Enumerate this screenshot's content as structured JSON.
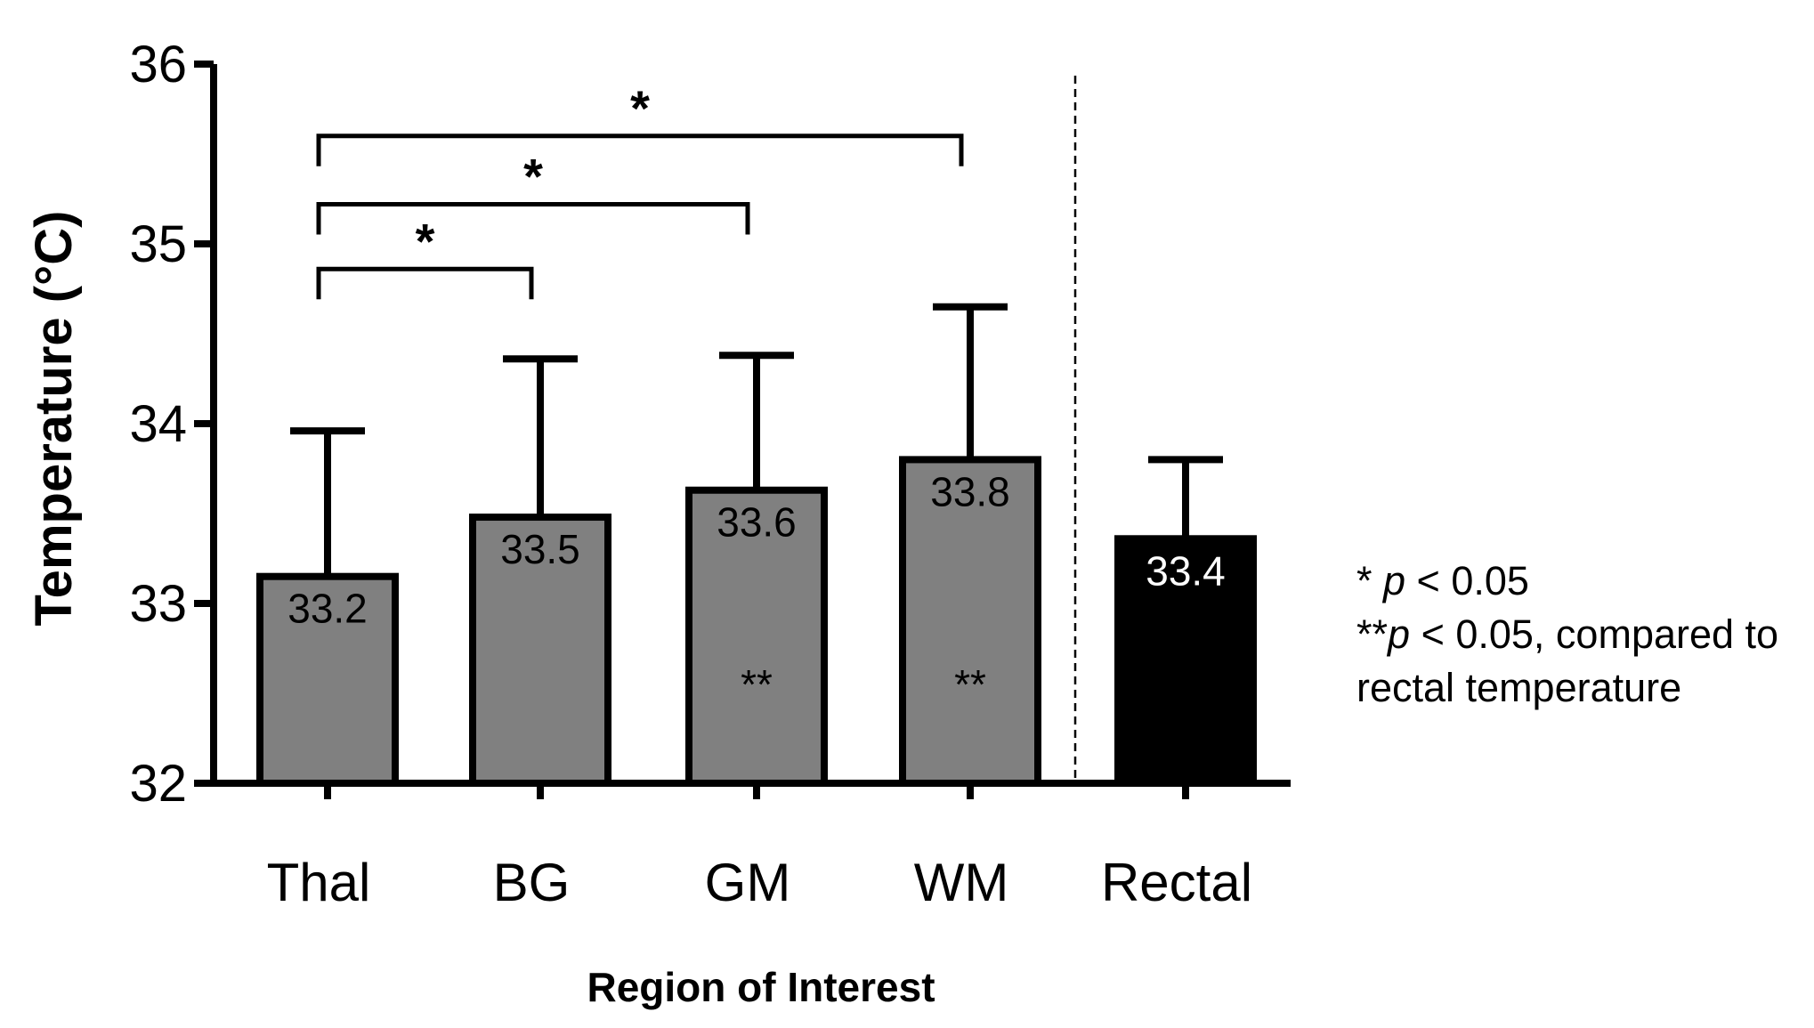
{
  "chart_data": {
    "type": "bar",
    "ylabel": "Temperature (°C)",
    "xlabel": "Region of Interest",
    "ylim": [
      32,
      36
    ],
    "yticks": [
      32,
      33,
      34,
      35,
      36
    ],
    "grid": false,
    "categories": [
      "Thal",
      "BG",
      "GM",
      "WM",
      "Rectal"
    ],
    "values": [
      33.15,
      33.48,
      33.63,
      33.8,
      33.36
    ],
    "error_upper": [
      33.96,
      34.36,
      34.38,
      34.65,
      33.8
    ],
    "value_labels": [
      "33.2",
      "33.5",
      "33.6",
      "33.8",
      "33.4"
    ],
    "bar_colors": [
      "#808080",
      "#808080",
      "#808080",
      "#808080",
      "#000000"
    ],
    "value_label_colors": [
      "#000000",
      "#000000",
      "#000000",
      "#000000",
      "#ffffff"
    ],
    "within_bar_annotations": [
      "",
      "",
      "**",
      "**",
      ""
    ],
    "significance_brackets": [
      {
        "from": "Thal",
        "to": "BG",
        "y": 34.86,
        "label": "*"
      },
      {
        "from": "Thal",
        "to": "GM",
        "y": 35.22,
        "label": "*"
      },
      {
        "from": "Thal",
        "to": "WM",
        "y": 35.6,
        "label": "*"
      }
    ],
    "separator_before": "Rectal",
    "legend": {
      "placement": "right",
      "lines": [
        {
          "prefix": "* ",
          "italic": "p",
          "suffix": " < 0.05"
        },
        {
          "prefix": "**",
          "italic": "p",
          "suffix": " < 0.05, compared to"
        },
        {
          "prefix": "",
          "italic": "",
          "suffix": "rectal temperature"
        }
      ]
    }
  }
}
